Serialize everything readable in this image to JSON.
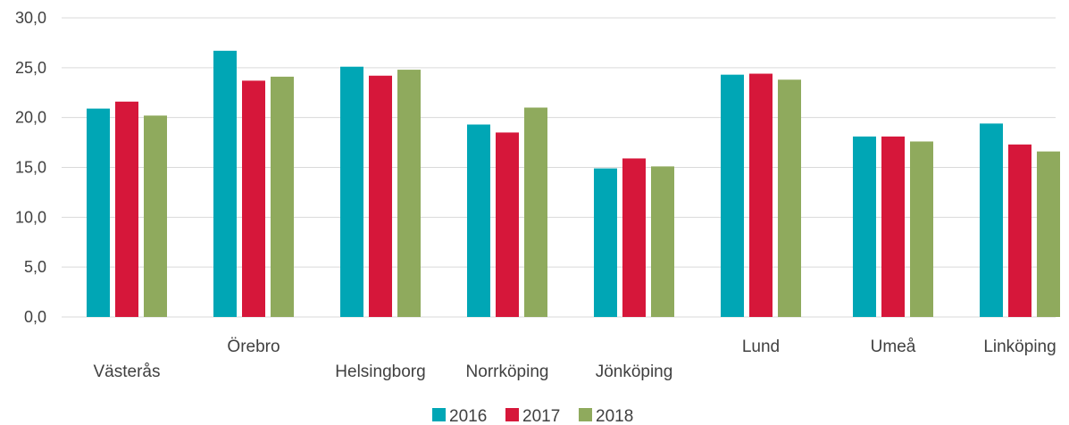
{
  "chart_data": {
    "type": "bar",
    "categories": [
      "Västerås",
      "Örebro",
      "Helsingborg",
      "Norrköping",
      "Jönköping",
      "Lund",
      "Umeå",
      "Linköping"
    ],
    "series": [
      {
        "name": "2016",
        "color": "#00a6b5",
        "values": [
          20.9,
          26.7,
          25.1,
          19.3,
          14.9,
          24.3,
          18.1,
          19.4
        ]
      },
      {
        "name": "2017",
        "color": "#d6173a",
        "values": [
          21.6,
          23.7,
          24.2,
          18.5,
          15.9,
          24.4,
          18.1,
          17.3
        ]
      },
      {
        "name": "2018",
        "color": "#8faa5d",
        "values": [
          20.2,
          24.1,
          24.8,
          21.0,
          15.1,
          23.8,
          17.6,
          16.6
        ]
      }
    ],
    "title": "",
    "xlabel": "",
    "ylabel": "",
    "ylim": [
      0,
      30
    ],
    "yticks": [
      "0,0",
      "5,0",
      "10,0",
      "15,0",
      "20,0",
      "25,0",
      "30,0"
    ],
    "grid": true,
    "legend": "bottom",
    "gridline_color": "#d9d9d9"
  }
}
